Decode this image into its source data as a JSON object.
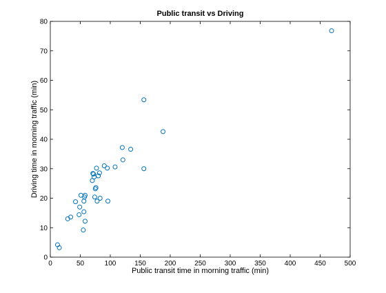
{
  "chart_data": {
    "type": "scatter",
    "title": "Public transit vs Driving",
    "xlabel": "Public transit time in morning traffic (min)",
    "ylabel": "Driving time in morning traffic (min)",
    "xlim": [
      0,
      500
    ],
    "ylim": [
      0,
      80
    ],
    "xticks": [
      "0",
      "50",
      "100",
      "150",
      "200",
      "250",
      "300",
      "350",
      "400",
      "450",
      "500"
    ],
    "yticks": [
      "0",
      "10",
      "20",
      "30",
      "40",
      "50",
      "60",
      "70",
      "80"
    ],
    "xtick_values": [
      0,
      50,
      100,
      150,
      200,
      250,
      300,
      350,
      400,
      450,
      500
    ],
    "ytick_values": [
      0,
      10,
      20,
      30,
      40,
      50,
      60,
      70,
      80
    ],
    "grid": false,
    "marker": "open-circle",
    "marker_color": "#0072bd",
    "points": [
      {
        "x": 12,
        "y": 4.2
      },
      {
        "x": 15,
        "y": 3.2
      },
      {
        "x": 29,
        "y": 13
      },
      {
        "x": 34,
        "y": 13.6
      },
      {
        "x": 42,
        "y": 18.8
      },
      {
        "x": 48,
        "y": 14.4
      },
      {
        "x": 49,
        "y": 17
      },
      {
        "x": 51,
        "y": 21
      },
      {
        "x": 55,
        "y": 9.2
      },
      {
        "x": 56,
        "y": 15.4
      },
      {
        "x": 56,
        "y": 19
      },
      {
        "x": 57,
        "y": 20.4
      },
      {
        "x": 58,
        "y": 21
      },
      {
        "x": 58,
        "y": 12.2
      },
      {
        "x": 70,
        "y": 26
      },
      {
        "x": 71,
        "y": 28.4
      },
      {
        "x": 72,
        "y": 28.2
      },
      {
        "x": 73,
        "y": 27.2
      },
      {
        "x": 74,
        "y": 20.4
      },
      {
        "x": 75,
        "y": 23.2
      },
      {
        "x": 76,
        "y": 23.6
      },
      {
        "x": 77,
        "y": 30.2
      },
      {
        "x": 78,
        "y": 19
      },
      {
        "x": 80,
        "y": 27.6
      },
      {
        "x": 82,
        "y": 28.6
      },
      {
        "x": 83,
        "y": 20
      },
      {
        "x": 90,
        "y": 31
      },
      {
        "x": 95,
        "y": 30.2
      },
      {
        "x": 96,
        "y": 19
      },
      {
        "x": 108,
        "y": 30.6
      },
      {
        "x": 120,
        "y": 37.2
      },
      {
        "x": 121,
        "y": 33
      },
      {
        "x": 134,
        "y": 36.6
      },
      {
        "x": 156,
        "y": 53.4
      },
      {
        "x": 156,
        "y": 30
      },
      {
        "x": 188,
        "y": 42.6
      },
      {
        "x": 469,
        "y": 76.8
      }
    ]
  }
}
